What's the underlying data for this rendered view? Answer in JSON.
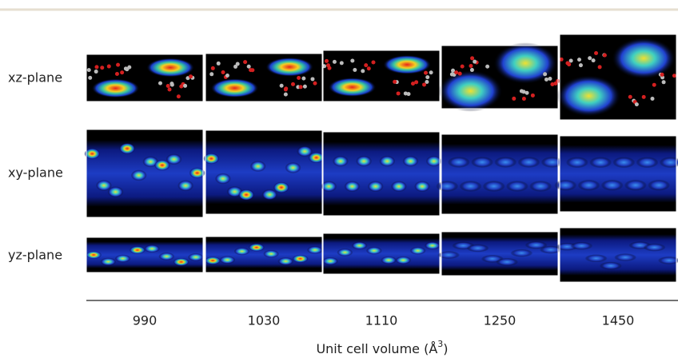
{
  "rows": [
    "xz-plane",
    "xy-plane",
    "yz-plane"
  ],
  "columns": [
    "990",
    "1030",
    "1110",
    "1250",
    "1450"
  ],
  "axis_label": [
    "Unit cell volume (Å",
    "3",
    ")"
  ]
}
